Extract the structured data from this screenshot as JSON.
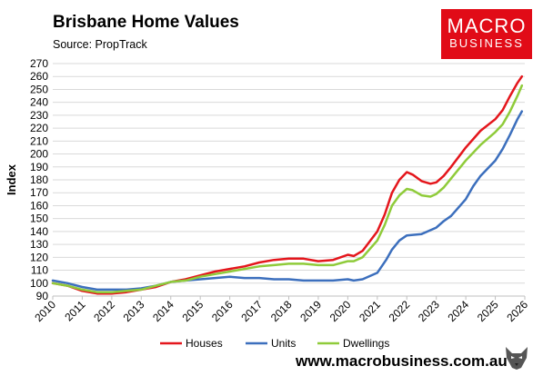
{
  "header": {
    "title": "Brisbane Home Values",
    "subtitle": "Source: PropTrack"
  },
  "logo": {
    "line1": "MACRO",
    "line2": "BUSINESS",
    "color": "#e10b17"
  },
  "footer": {
    "website": "www.macrobusiness.com.au",
    "wolf_icon": "wolf-head-icon"
  },
  "chart_data": {
    "type": "line",
    "ylabel": "Index",
    "xlabel": "",
    "ylim": [
      90,
      270
    ],
    "yticks": [
      90,
      100,
      110,
      120,
      130,
      140,
      150,
      160,
      170,
      180,
      190,
      200,
      210,
      220,
      230,
      240,
      250,
      260,
      270
    ],
    "xlim": [
      2010,
      2026
    ],
    "xticks": [
      "2010",
      "2011",
      "2012",
      "2013",
      "2014",
      "2015",
      "2016",
      "2017",
      "2018",
      "2019",
      "2020",
      "2021",
      "2022",
      "2023",
      "2024",
      "2025",
      "2026"
    ],
    "grid": "horizontal",
    "legend": "bottom",
    "series": [
      {
        "name": "Houses",
        "color": "#e4161c",
        "points": [
          [
            2010,
            100
          ],
          [
            2010.5,
            98
          ],
          [
            2011,
            94
          ],
          [
            2011.5,
            92
          ],
          [
            2012,
            92
          ],
          [
            2012.5,
            93
          ],
          [
            2013,
            95
          ],
          [
            2013.5,
            97
          ],
          [
            2014,
            101
          ],
          [
            2014.5,
            103
          ],
          [
            2015,
            106
          ],
          [
            2015.5,
            109
          ],
          [
            2016,
            111
          ],
          [
            2016.5,
            113
          ],
          [
            2017,
            116
          ],
          [
            2017.5,
            118
          ],
          [
            2018,
            119
          ],
          [
            2018.5,
            119
          ],
          [
            2019,
            117
          ],
          [
            2019.5,
            118
          ],
          [
            2020,
            122
          ],
          [
            2020.2,
            121
          ],
          [
            2020.5,
            125
          ],
          [
            2021,
            140
          ],
          [
            2021.25,
            153
          ],
          [
            2021.5,
            170
          ],
          [
            2021.75,
            180
          ],
          [
            2022,
            186
          ],
          [
            2022.2,
            184
          ],
          [
            2022.5,
            179
          ],
          [
            2022.8,
            177
          ],
          [
            2023,
            178
          ],
          [
            2023.25,
            183
          ],
          [
            2023.5,
            190
          ],
          [
            2024,
            205
          ],
          [
            2024.5,
            218
          ],
          [
            2025,
            227
          ],
          [
            2025.25,
            234
          ],
          [
            2025.5,
            245
          ],
          [
            2025.75,
            255
          ],
          [
            2025.9,
            260
          ]
        ]
      },
      {
        "name": "Units",
        "color": "#3c6fbd",
        "points": [
          [
            2010,
            102
          ],
          [
            2010.5,
            100
          ],
          [
            2011,
            97
          ],
          [
            2011.5,
            95
          ],
          [
            2012,
            95
          ],
          [
            2012.5,
            95
          ],
          [
            2013,
            96
          ],
          [
            2013.5,
            98
          ],
          [
            2014,
            101
          ],
          [
            2014.5,
            102
          ],
          [
            2015,
            103
          ],
          [
            2015.5,
            104
          ],
          [
            2016,
            105
          ],
          [
            2016.5,
            104
          ],
          [
            2017,
            104
          ],
          [
            2017.5,
            103
          ],
          [
            2018,
            103
          ],
          [
            2018.5,
            102
          ],
          [
            2019,
            102
          ],
          [
            2019.5,
            102
          ],
          [
            2020,
            103
          ],
          [
            2020.2,
            102
          ],
          [
            2020.5,
            103
          ],
          [
            2021,
            108
          ],
          [
            2021.3,
            118
          ],
          [
            2021.5,
            126
          ],
          [
            2021.75,
            133
          ],
          [
            2022,
            137
          ],
          [
            2022.5,
            138
          ],
          [
            2023,
            143
          ],
          [
            2023.25,
            148
          ],
          [
            2023.5,
            152
          ],
          [
            2024,
            165
          ],
          [
            2024.25,
            175
          ],
          [
            2024.5,
            183
          ],
          [
            2025,
            195
          ],
          [
            2025.25,
            204
          ],
          [
            2025.5,
            215
          ],
          [
            2025.75,
            227
          ],
          [
            2025.9,
            233
          ]
        ]
      },
      {
        "name": "Dwellings",
        "color": "#8fcb3a",
        "points": [
          [
            2010,
            100
          ],
          [
            2010.5,
            98
          ],
          [
            2011,
            95
          ],
          [
            2011.5,
            93
          ],
          [
            2012,
            93
          ],
          [
            2012.5,
            94
          ],
          [
            2013,
            95
          ],
          [
            2013.5,
            98
          ],
          [
            2014,
            101
          ],
          [
            2014.5,
            102
          ],
          [
            2015,
            105
          ],
          [
            2015.5,
            107
          ],
          [
            2016,
            109
          ],
          [
            2016.5,
            111
          ],
          [
            2017,
            113
          ],
          [
            2017.5,
            114
          ],
          [
            2018,
            115
          ],
          [
            2018.5,
            115
          ],
          [
            2019,
            114
          ],
          [
            2019.5,
            114
          ],
          [
            2020,
            117
          ],
          [
            2020.2,
            117
          ],
          [
            2020.5,
            120
          ],
          [
            2021,
            133
          ],
          [
            2021.25,
            145
          ],
          [
            2021.5,
            160
          ],
          [
            2021.75,
            168
          ],
          [
            2022,
            173
          ],
          [
            2022.2,
            172
          ],
          [
            2022.5,
            168
          ],
          [
            2022.8,
            167
          ],
          [
            2023,
            169
          ],
          [
            2023.25,
            174
          ],
          [
            2023.5,
            181
          ],
          [
            2024,
            195
          ],
          [
            2024.5,
            207
          ],
          [
            2025,
            217
          ],
          [
            2025.25,
            223
          ],
          [
            2025.5,
            233
          ],
          [
            2025.75,
            245
          ],
          [
            2025.9,
            253
          ]
        ]
      }
    ]
  }
}
